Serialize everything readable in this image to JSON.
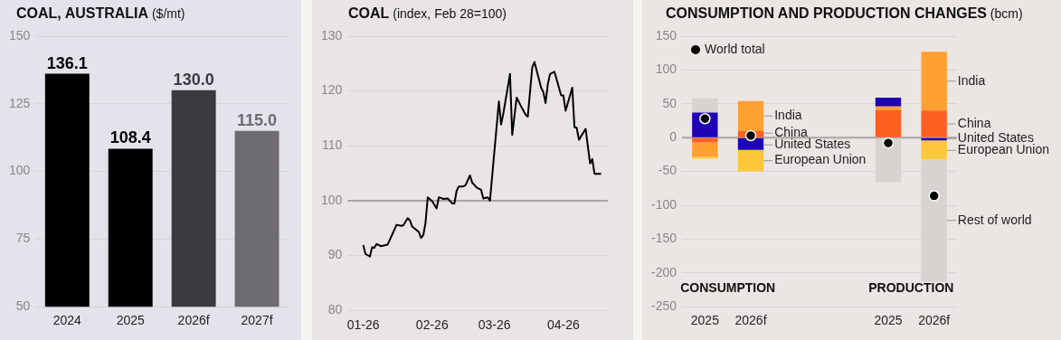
{
  "chart_data": [
    {
      "type": "bar",
      "title": "COAL, AUSTRALIA ($/mt)",
      "categories": [
        "2024",
        "2025",
        "2026f",
        "2027f"
      ],
      "values": [
        136.1,
        108.4,
        130.0,
        115.0
      ],
      "colors": [
        "#000000",
        "#000000",
        "#3b3a3f",
        "#6e6c71"
      ],
      "value_labels": [
        "136.1",
        "108.4",
        "130.0",
        "115.0"
      ],
      "ylim": [
        50,
        150
      ],
      "yticks": [
        50,
        75,
        100,
        125,
        150
      ],
      "grid": "y"
    },
    {
      "type": "line",
      "title": "COAL (index, Feb 28=100)",
      "color": "#000000",
      "marker": "none",
      "grid": "y",
      "x": [
        "2026-01-01",
        "2026-01-02",
        "2026-01-04",
        "2026-01-05",
        "2026-01-06",
        "2026-01-07",
        "2026-01-09",
        "2026-01-12",
        "2026-01-14",
        "2026-01-16",
        "2026-01-18",
        "2026-01-19",
        "2026-01-21",
        "2026-01-22",
        "2026-01-23",
        "2026-01-26",
        "2026-01-27",
        "2026-01-28",
        "2026-01-29",
        "2026-01-30",
        "2026-02-01",
        "2026-02-03",
        "2026-02-04",
        "2026-02-05",
        "2026-02-06",
        "2026-02-08",
        "2026-02-10",
        "2026-02-11",
        "2026-02-12",
        "2026-02-13",
        "2026-02-15",
        "2026-02-16",
        "2026-02-18",
        "2026-02-19",
        "2026-02-21",
        "2026-02-23",
        "2026-02-24",
        "2026-02-26",
        "2026-02-27",
        "2026-03-03",
        "2026-03-04",
        "2026-03-05",
        "2026-03-08",
        "2026-03-09",
        "2026-03-11",
        "2026-03-13",
        "2026-03-15",
        "2026-03-16",
        "2026-03-18",
        "2026-03-19",
        "2026-03-22",
        "2026-03-23",
        "2026-03-24",
        "2026-03-25",
        "2026-03-26",
        "2026-03-28",
        "2026-03-29",
        "2026-03-31",
        "2026-04-01",
        "2026-04-02",
        "2026-04-05",
        "2026-04-06",
        "2026-04-07",
        "2026-04-08",
        "2026-04-11",
        "2026-04-13",
        "2026-04-14",
        "2026-04-15",
        "2026-04-18"
      ],
      "values": [
        91.9,
        90.3,
        89.8,
        91.5,
        91.4,
        92.1,
        91.7,
        92.0,
        93.8,
        95.6,
        95.4,
        95.5,
        96.8,
        96.4,
        95.3,
        94.3,
        93.2,
        93.7,
        95.9,
        100.6,
        99.9,
        98.6,
        100.6,
        100.5,
        100.3,
        100.4,
        99.5,
        99.5,
        101.8,
        102.6,
        102.6,
        102.8,
        104.6,
        103.3,
        102.4,
        102.0,
        100.4,
        100.6,
        100.0,
        118.1,
        113.9,
        115.9,
        123.1,
        112.0,
        118.8,
        117.2,
        115.7,
        115.3,
        124.3,
        125.3,
        120.6,
        119.8,
        117.8,
        121.2,
        123.1,
        123.5,
        122.1,
        119.2,
        119.2,
        116.4,
        120.6,
        113.4,
        113.3,
        111.1,
        113.1,
        106.8,
        107.6,
        104.9,
        104.9
      ],
      "xlim": [
        "2025-12-25",
        "2026-04-21"
      ],
      "xticks": [
        {
          "value": "2026-01-01",
          "label": "01-26"
        },
        {
          "value": "2026-02-01",
          "label": "02-26"
        },
        {
          "value": "2026-03-01",
          "label": "03-26"
        },
        {
          "value": "2026-04-01",
          "label": "04-26"
        }
      ],
      "ylim": [
        80,
        130
      ],
      "yticks": [
        80,
        90,
        100,
        110,
        120,
        130
      ],
      "ref_lines": [
        {
          "axis": "y",
          "value": 100,
          "color": "#a9a5a7"
        }
      ]
    },
    {
      "type": "bar",
      "stacked": true,
      "title": "CONSUMPTION AND PRODUCTION CHANGES (bcm)",
      "categories": [
        "2025",
        "2026f",
        null,
        null,
        "2025",
        "2026f"
      ],
      "series": [
        {
          "name": "China",
          "color": "#ff5f1f",
          "values": [
            -7,
            10,
            null,
            null,
            41,
            40
          ]
        },
        {
          "name": "India",
          "color": "#ffa030",
          "values": [
            -21,
            44,
            null,
            null,
            5,
            87
          ]
        },
        {
          "name": "United States",
          "color": "#1f00b5",
          "values": [
            37,
            -18,
            null,
            null,
            13,
            -4
          ]
        },
        {
          "name": "European Union",
          "color": "#ffc83a",
          "values": [
            -3,
            -32,
            null,
            null,
            null,
            -28
          ]
        },
        {
          "name": "Rest of world",
          "color": "#d8d2d0",
          "values": [
            21,
            null,
            null,
            null,
            -66,
            -181
          ]
        },
        {
          "name": "World total",
          "type": "scatter",
          "color": "#000000",
          "values": [
            28,
            3,
            null,
            null,
            -8,
            -86
          ]
        }
      ],
      "ylim": [
        -250,
        150
      ],
      "yticks": [
        -250,
        -200,
        -150,
        -100,
        -50,
        0,
        50,
        100,
        150
      ],
      "grid": "y",
      "legend": "top left",
      "marker": "circle",
      "ref_lines": [
        {
          "axis": "y",
          "value": 0,
          "color": "#a9a5a7"
        }
      ],
      "annotations": [
        "CONSUMPTION",
        "PRODUCTION"
      ]
    }
  ]
}
